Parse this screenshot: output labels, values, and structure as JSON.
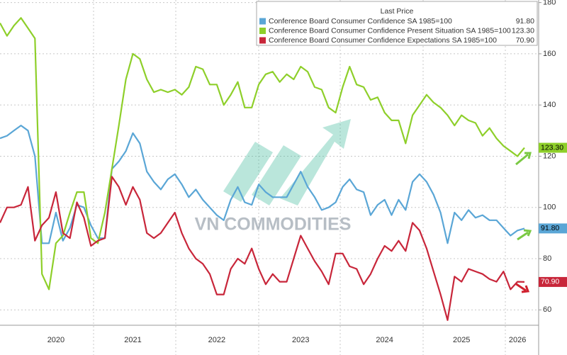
{
  "chart_data": {
    "type": "line",
    "legend_title": "Last Price",
    "watermark": "VN COMMODITIES",
    "categories": [
      null,
      null,
      null,
      null,
      null,
      null,
      null,
      null,
      "2020",
      null,
      null,
      null,
      null,
      null,
      null,
      null,
      null,
      null,
      null,
      "2021",
      null,
      null,
      null,
      null,
      null,
      null,
      null,
      null,
      null,
      null,
      null,
      "2022",
      null,
      null,
      null,
      null,
      null,
      null,
      null,
      null,
      null,
      null,
      null,
      "2023",
      null,
      null,
      null,
      null,
      null,
      null,
      null,
      null,
      null,
      null,
      null,
      "2024",
      null,
      null,
      null,
      null,
      null,
      null,
      null,
      null,
      null,
      null,
      "2025",
      null,
      null,
      null,
      null,
      null,
      null,
      null,
      "2026",
      null
    ],
    "series": [
      {
        "name": "Conference Board Consumer Confidence SA 1985=100",
        "color": "#5aa6d6",
        "last": "91.80",
        "values": [
          127,
          128,
          130,
          132,
          130,
          120,
          86,
          86,
          98,
          87,
          92,
          101,
          100,
          93,
          88,
          88,
          115,
          118,
          122,
          129,
          125,
          114,
          110,
          107,
          111,
          113,
          109,
          104,
          107,
          103,
          100,
          97,
          95,
          103,
          108,
          102,
          101,
          109,
          106,
          104,
          104,
          104,
          109,
          114,
          108,
          104,
          99,
          100,
          102,
          108,
          111,
          107,
          106,
          97,
          101,
          103,
          97,
          103,
          99,
          110,
          113,
          110,
          105,
          98,
          86,
          98,
          95,
          99,
          96,
          97,
          95,
          95,
          92,
          89,
          91,
          91.8
        ]
      },
      {
        "name": "Conference Board Consumer Confidence Present Situation SA 1985=100",
        "color": "#8ecf2a",
        "last": "123.30",
        "values": [
          172,
          167,
          171,
          174,
          170,
          166,
          74,
          68,
          86,
          89,
          98,
          106,
          106,
          88,
          86,
          98,
          115,
          132,
          150,
          160,
          158,
          150,
          145,
          146,
          145,
          146,
          144,
          147,
          155,
          154,
          148,
          148,
          140,
          144,
          149,
          139,
          139,
          148,
          152,
          153,
          149,
          152,
          150,
          155,
          153,
          147,
          146,
          139,
          137,
          147,
          155,
          148,
          147,
          142,
          143,
          137,
          134,
          134,
          125,
          136,
          140,
          144,
          141,
          139,
          136,
          132,
          136,
          134,
          133,
          128,
          131,
          127,
          124,
          122,
          120,
          123.3
        ]
      },
      {
        "name": "Conference Board Consumer Confidence Expectations SA 1985=100",
        "color": "#c8263a",
        "last": "70.90",
        "values": [
          94,
          100,
          100,
          101,
          108,
          87,
          93,
          96,
          106,
          90,
          88,
          102,
          96,
          85,
          87,
          88,
          112,
          108,
          101,
          108,
          103,
          90,
          88,
          90,
          94,
          98,
          90,
          84,
          80,
          78,
          74,
          66,
          66,
          76,
          80,
          78,
          84,
          76,
          70,
          74,
          71,
          71,
          80,
          89,
          84,
          79,
          75,
          70,
          82,
          82,
          77,
          76,
          70,
          74,
          80,
          85,
          83,
          87,
          83,
          94,
          91,
          84,
          75,
          66,
          56,
          73,
          71,
          76,
          75,
          74,
          72,
          71,
          75,
          68,
          71,
          70.9
        ]
      }
    ],
    "ylim": [
      54,
      181
    ],
    "yticks": [
      60,
      80,
      100,
      120,
      140,
      160,
      180
    ],
    "grid": true
  }
}
